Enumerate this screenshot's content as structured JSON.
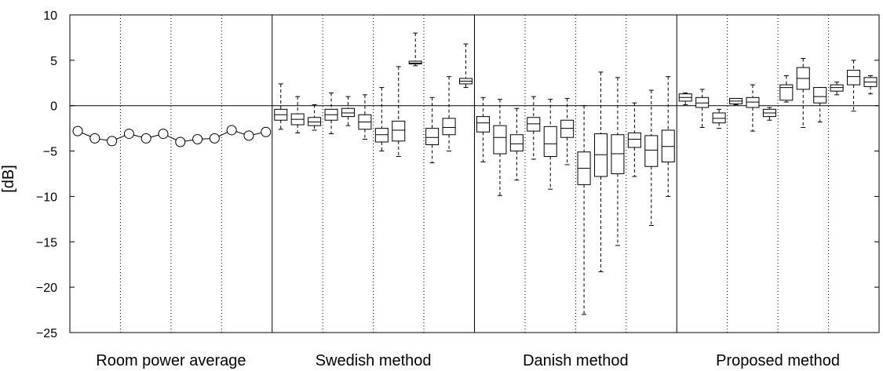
{
  "chart_data": {
    "type": "box",
    "ylabel": "[dB]",
    "ylim": [
      -25,
      10
    ],
    "yticks": [
      10,
      5,
      0,
      -5,
      -10,
      -15,
      -20,
      -25
    ],
    "ytick_labels": [
      "10",
      "5",
      "0",
      "−5",
      "−10",
      "−15",
      "−20",
      "−25"
    ],
    "reference_line": 0,
    "panels": [
      {
        "label": "Room power average",
        "kind": "line_markers",
        "values": [
          -2.8,
          -3.6,
          -3.9,
          -3.1,
          -3.6,
          -3.1,
          -4.0,
          -3.7,
          -3.6,
          -2.7,
          -3.3,
          -2.9
        ]
      },
      {
        "label": "Swedish method",
        "kind": "box",
        "boxes": [
          {
            "min": -2.6,
            "q1": -1.6,
            "median": -1.0,
            "q3": -0.4,
            "max": 2.4
          },
          {
            "min": -3.0,
            "q1": -2.1,
            "median": -1.5,
            "q3": -0.9,
            "max": 1.0
          },
          {
            "min": -2.7,
            "q1": -2.2,
            "median": -1.8,
            "q3": -1.3,
            "max": 0.1
          },
          {
            "min": -3.1,
            "q1": -1.6,
            "median": -1.0,
            "q3": -0.4,
            "max": 1.4
          },
          {
            "min": -2.2,
            "q1": -1.2,
            "median": -0.8,
            "q3": -0.3,
            "max": 1.0
          },
          {
            "min": -3.7,
            "q1": -2.6,
            "median": -1.8,
            "q3": -1.0,
            "max": 1.2
          },
          {
            "min": -5.0,
            "q1": -4.0,
            "median": -3.2,
            "q3": -2.5,
            "max": 2.0
          },
          {
            "min": -5.6,
            "q1": -3.9,
            "median": -2.7,
            "q3": -1.7,
            "max": 4.3
          },
          {
            "min": 4.4,
            "q1": 4.6,
            "median": 4.7,
            "q3": 4.9,
            "max": 8.0
          },
          {
            "min": -6.3,
            "q1": -4.3,
            "median": -3.5,
            "q3": -2.5,
            "max": 0.9
          },
          {
            "min": -5.0,
            "q1": -3.2,
            "median": -2.4,
            "q3": -1.4,
            "max": 3.2
          },
          {
            "min": 2.0,
            "q1": 2.4,
            "median": 2.7,
            "q3": 3.0,
            "max": 6.8
          }
        ]
      },
      {
        "label": "Danish method",
        "kind": "box",
        "boxes": [
          {
            "min": -6.2,
            "q1": -2.9,
            "median": -1.9,
            "q3": -1.2,
            "max": 0.9
          },
          {
            "min": -9.9,
            "q1": -5.3,
            "median": -3.5,
            "q3": -2.2,
            "max": 0.7
          },
          {
            "min": -8.2,
            "q1": -5.0,
            "median": -4.2,
            "q3": -3.2,
            "max": -0.3
          },
          {
            "min": -5.9,
            "q1": -2.8,
            "median": -2.0,
            "q3": -1.3,
            "max": 1.0
          },
          {
            "min": -9.2,
            "q1": -5.6,
            "median": -4.2,
            "q3": -2.3,
            "max": 0.7
          },
          {
            "min": -6.5,
            "q1": -3.5,
            "median": -2.5,
            "q3": -1.6,
            "max": 0.8
          },
          {
            "min": -23.0,
            "q1": -8.7,
            "median": -6.9,
            "q3": -5.1,
            "max": 0.0
          },
          {
            "min": -18.3,
            "q1": -7.8,
            "median": -5.4,
            "q3": -3.1,
            "max": 3.7
          },
          {
            "min": -15.4,
            "q1": -7.5,
            "median": -5.3,
            "q3": -3.2,
            "max": 3.1
          },
          {
            "min": -7.8,
            "q1": -4.6,
            "median": -3.7,
            "q3": -3.0,
            "max": 0.3
          },
          {
            "min": -13.2,
            "q1": -6.7,
            "median": -4.9,
            "q3": -3.3,
            "max": 1.7
          },
          {
            "min": -10.0,
            "q1": -6.2,
            "median": -4.5,
            "q3": -2.7,
            "max": 3.2
          }
        ]
      },
      {
        "label": "Proposed method",
        "kind": "box",
        "boxes": [
          {
            "min": 0.1,
            "q1": 0.5,
            "median": 0.9,
            "q3": 1.3,
            "max": 1.4
          },
          {
            "min": -2.4,
            "q1": -0.2,
            "median": 0.3,
            "q3": 0.9,
            "max": 1.8
          },
          {
            "min": -2.5,
            "q1": -1.9,
            "median": -1.4,
            "q3": -0.8,
            "max": -0.4
          },
          {
            "min": 0.1,
            "q1": 0.2,
            "median": 0.5,
            "q3": 0.8,
            "max": 0.8
          },
          {
            "min": -2.8,
            "q1": -0.2,
            "median": 0.4,
            "q3": 0.9,
            "max": 2.3
          },
          {
            "min": -1.6,
            "q1": -1.2,
            "median": -0.8,
            "q3": -0.4,
            "max": -0.2
          },
          {
            "min": 0.4,
            "q1": 0.6,
            "median": 2.0,
            "q3": 2.3,
            "max": 3.3
          },
          {
            "min": -2.4,
            "q1": 1.8,
            "median": 3.0,
            "q3": 4.2,
            "max": 5.2
          },
          {
            "min": -1.8,
            "q1": 0.3,
            "median": 1.0,
            "q3": 2.0,
            "max": 2.0
          },
          {
            "min": 1.2,
            "q1": 1.6,
            "median": 2.0,
            "q3": 2.3,
            "max": 2.6
          },
          {
            "min": -0.6,
            "q1": 2.3,
            "median": 3.2,
            "q3": 3.9,
            "max": 5.0
          },
          {
            "min": 1.3,
            "q1": 2.1,
            "median": 2.6,
            "q3": 3.1,
            "max": 3.3
          }
        ]
      }
    ]
  }
}
